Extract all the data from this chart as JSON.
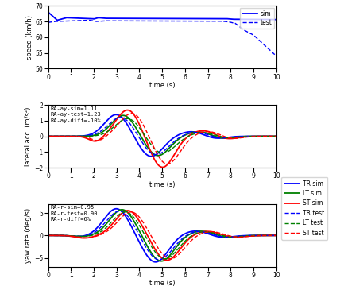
{
  "subplot1": {
    "ylabel": "speed (km/h)",
    "xlabel": "time (s)",
    "ylim": [
      50,
      70
    ],
    "yticks": [
      50,
      55,
      60,
      65,
      70
    ],
    "xlim": [
      0,
      10
    ]
  },
  "subplot2": {
    "ylabel": "lateral acc. (m/s²)",
    "xlabel": "time (s)",
    "ylim": [
      -2,
      2
    ],
    "yticks": [
      -2,
      -1,
      0,
      1,
      2
    ],
    "xlim": [
      0,
      10
    ],
    "annotation": "RA-ay-sim=1.11\nRA-ay-test=1.23\nRA-ay-diff=-10%"
  },
  "subplot3": {
    "ylabel": "yaw rate (deg/s)",
    "xlabel": "time (s)",
    "ylim": [
      -7,
      7
    ],
    "yticks": [
      -5,
      0,
      5
    ],
    "xlim": [
      0,
      10
    ],
    "annotation": "RA-r-sim=0.95\nRA-r-test=0.90\nRA-r-diff=6%"
  },
  "colors": {
    "blue": "#0000FF",
    "green": "#008000",
    "red": "#FF0000"
  },
  "legend1": [
    "sim",
    "test"
  ],
  "legend2": [
    "TR sim",
    "LT sim",
    "ST sim",
    "TR test",
    "LT test",
    "ST test"
  ]
}
